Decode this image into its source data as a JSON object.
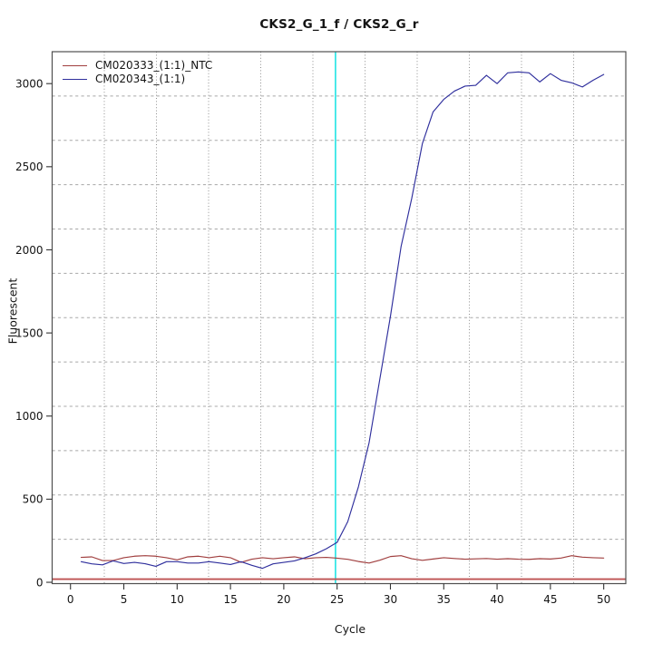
{
  "chart_data": {
    "type": "line",
    "title": "CKS2_G_1_f / CKS2_G_r",
    "xlabel": "Cycle",
    "ylabel": "Fluorescent",
    "axes": {
      "x_ticks": [
        0,
        5,
        10,
        15,
        20,
        25,
        30,
        35,
        40,
        45,
        50
      ],
      "y_ticks": [
        0,
        500,
        1000,
        1500,
        2000,
        2500,
        3000
      ],
      "xlim": [
        -1.72,
        52.07
      ],
      "ylim": [
        -8,
        3192
      ],
      "box_color": "#4f4f4f",
      "tick_color": "#333333",
      "label_color": "#141414"
    },
    "grid": {
      "on": true,
      "nx_divisions": 11,
      "ny_divisions": 12,
      "v_color": "#8f8f8f",
      "h_color": "#a8a8a8"
    },
    "legend_position": "top-left",
    "x": [
      1,
      2,
      3,
      4,
      5,
      6,
      7,
      8,
      9,
      10,
      11,
      12,
      13,
      14,
      15,
      16,
      17,
      18,
      19,
      20,
      21,
      22,
      23,
      24,
      25,
      26,
      27,
      28,
      29,
      30,
      31,
      32,
      33,
      34,
      35,
      36,
      37,
      38,
      39,
      40,
      41,
      42,
      43,
      44,
      45,
      46,
      47,
      48,
      49,
      50
    ],
    "series": [
      {
        "name": "CM020333_(1:1)_NTC",
        "color": "#A03E3E",
        "values": [
          150,
          153,
          131,
          131,
          148,
          157,
          160,
          157,
          148,
          135,
          153,
          157,
          148,
          157,
          148,
          120,
          139,
          148,
          142,
          148,
          153,
          142,
          148,
          150,
          145,
          138,
          125,
          116,
          133,
          155,
          160,
          142,
          132,
          140,
          148,
          143,
          139,
          141,
          143,
          139,
          142,
          139,
          138,
          142,
          140,
          146,
          160,
          151,
          148,
          146
        ]
      },
      {
        "name": "CM020343_(1:1)",
        "color": "#2F2F9D",
        "values": [
          124,
          111,
          105,
          129,
          113,
          120,
          112,
          96,
          124,
          124,
          116,
          116,
          124,
          116,
          107,
          124,
          102,
          84,
          111,
          120,
          129,
          148,
          171,
          202,
          240,
          365,
          575,
          840,
          1220,
          1600,
          2020,
          2310,
          2640,
          2830,
          2905,
          2955,
          2985,
          2990,
          3050,
          3000,
          3065,
          3070,
          3065,
          3010,
          3060,
          3020,
          3005,
          2980,
          3020,
          3055
        ]
      }
    ],
    "threshold_line": {
      "value": 19,
      "color": "#BE5252"
    },
    "ct_line": {
      "x": 24.85,
      "color": "#00E0E0"
    }
  }
}
